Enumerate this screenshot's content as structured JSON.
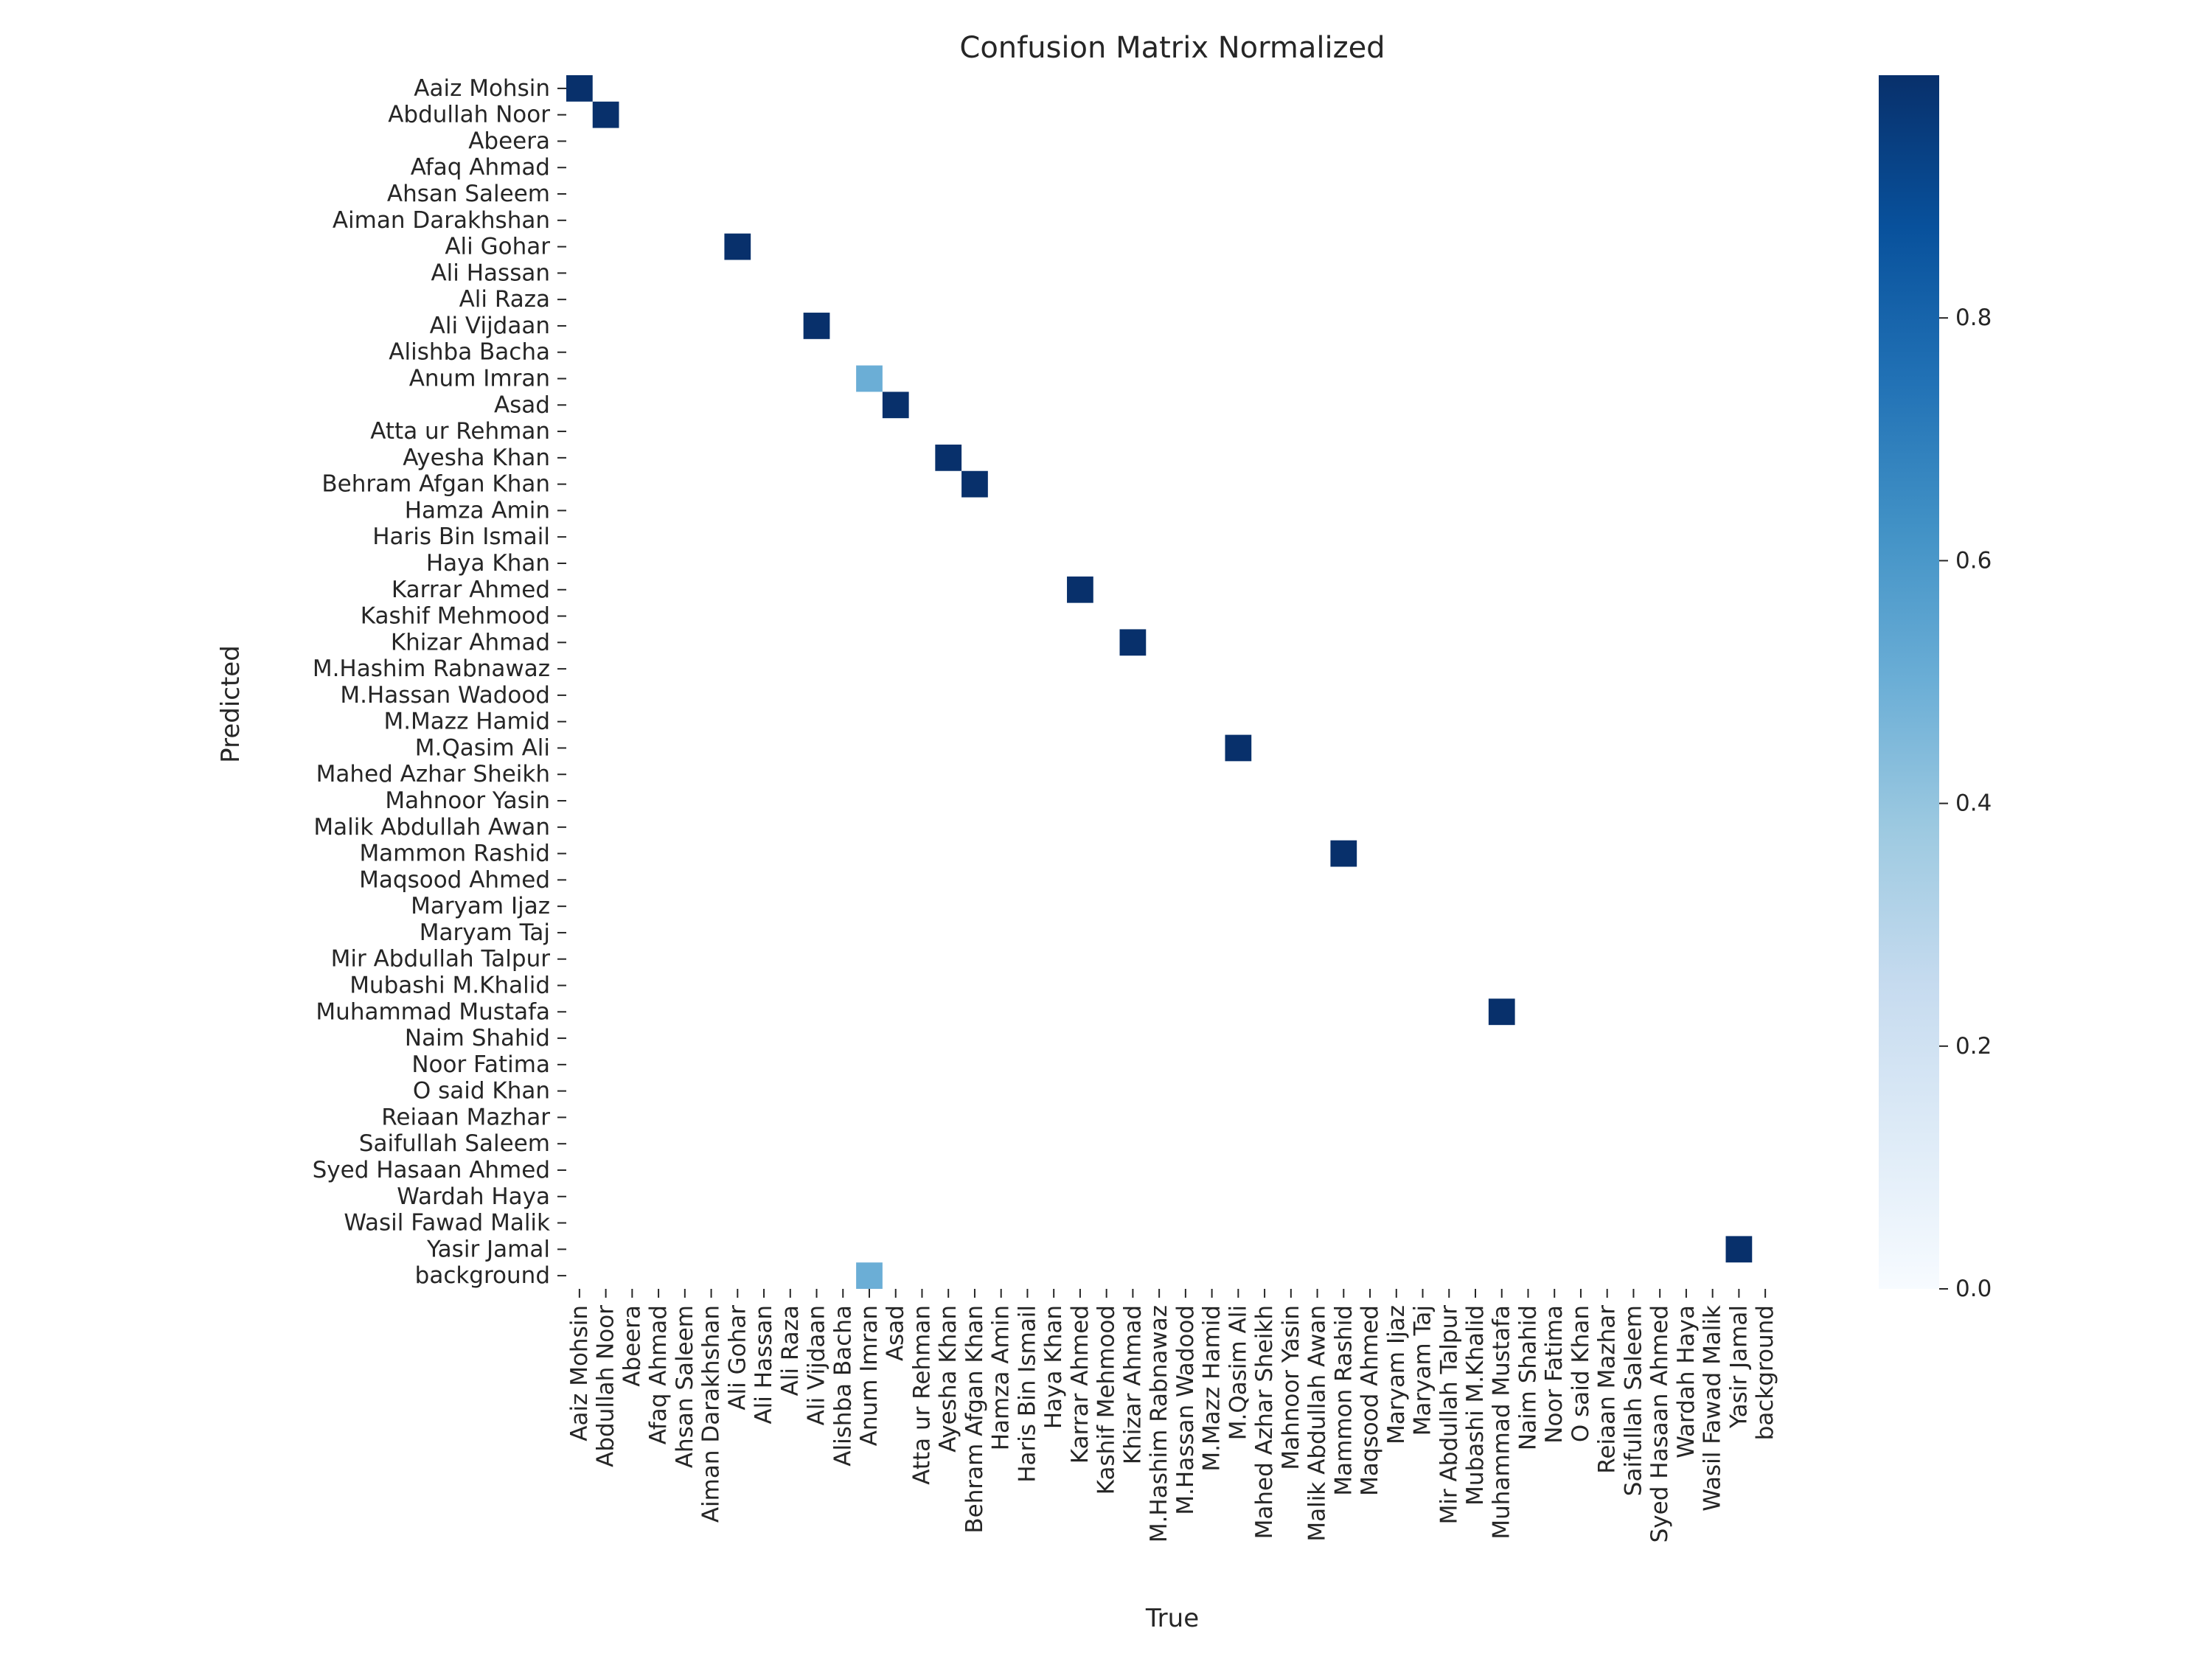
{
  "chart_data": {
    "type": "heatmap",
    "title": "Confusion Matrix Normalized",
    "xlabel": "True",
    "ylabel": "Predicted",
    "labels": [
      "Aaiz Mohsin",
      "Abdullah Noor",
      "Abeera",
      "Afaq Ahmad",
      "Ahsan Saleem",
      "Aiman Darakhshan",
      "Ali Gohar",
      "Ali Hassan",
      "Ali Raza",
      "Ali Vijdaan",
      "Alishba Bacha",
      "Anum Imran",
      "Asad",
      "Atta ur Rehman",
      "Ayesha Khan",
      "Behram Afgan Khan",
      "Hamza Amin",
      "Haris Bin Ismail",
      "Haya Khan",
      "Karrar Ahmed",
      "Kashif Mehmood",
      "Khizar Ahmad",
      "M.Hashim Rabnawaz",
      "M.Hassan Wadood",
      "M.Mazz Hamid",
      "M.Qasim Ali",
      "Mahed Azhar Sheikh",
      "Mahnoor Yasin",
      "Malik Abdullah Awan",
      "Mammon Rashid",
      "Maqsood Ahmed",
      "Maryam Ijaz",
      "Maryam Taj",
      "Mir Abdullah Talpur",
      "Mubashi M.Khalid",
      "Muhammad Mustafa",
      "Naim Shahid",
      "Noor Fatima",
      "O said Khan",
      "Reiaan Mazhar",
      "Saifullah Saleem",
      "Syed Hasaan Ahmed",
      "Wardah Haya",
      "Wasil Fawad Malik",
      "Yasir Jamal",
      "background"
    ],
    "cells": [
      {
        "true": "Aaiz Mohsin",
        "predicted": "Aaiz Mohsin",
        "value": 1.0
      },
      {
        "true": "Abdullah Noor",
        "predicted": "Abdullah Noor",
        "value": 1.0
      },
      {
        "true": "Ali Gohar",
        "predicted": "Ali Gohar",
        "value": 1.0
      },
      {
        "true": "Ali Vijdaan",
        "predicted": "Ali Vijdaan",
        "value": 1.0
      },
      {
        "true": "Anum Imran",
        "predicted": "Anum Imran",
        "value": 0.5
      },
      {
        "true": "Asad",
        "predicted": "Asad",
        "value": 1.0
      },
      {
        "true": "Ayesha Khan",
        "predicted": "Ayesha Khan",
        "value": 1.0
      },
      {
        "true": "Behram Afgan Khan",
        "predicted": "Behram Afgan Khan",
        "value": 1.0
      },
      {
        "true": "Karrar Ahmed",
        "predicted": "Karrar Ahmed",
        "value": 1.0
      },
      {
        "true": "Khizar Ahmad",
        "predicted": "Khizar Ahmad",
        "value": 1.0
      },
      {
        "true": "M.Qasim Ali",
        "predicted": "M.Qasim Ali",
        "value": 1.0
      },
      {
        "true": "Mammon Rashid",
        "predicted": "Mammon Rashid",
        "value": 1.0
      },
      {
        "true": "Muhammad Mustafa",
        "predicted": "Muhammad Mustafa",
        "value": 1.0
      },
      {
        "true": "Yasir Jamal",
        "predicted": "Yasir Jamal",
        "value": 1.0
      },
      {
        "true": "Anum Imran",
        "predicted": "background",
        "value": 0.5
      }
    ],
    "colorbar": {
      "range": [
        0,
        1
      ],
      "ticks": [
        0.0,
        0.2,
        0.4,
        0.6,
        0.8
      ],
      "tick_labels": [
        "0.0",
        "0.2",
        "0.4",
        "0.6",
        "0.8"
      ],
      "colormap": "Blues",
      "colors": [
        "#f7fbff",
        "#deebf7",
        "#c6dbef",
        "#9ecae1",
        "#6baed6",
        "#4292c6",
        "#2171b5",
        "#08519c",
        "#08306b"
      ]
    },
    "grid": false,
    "legend": "colorbar-right"
  }
}
